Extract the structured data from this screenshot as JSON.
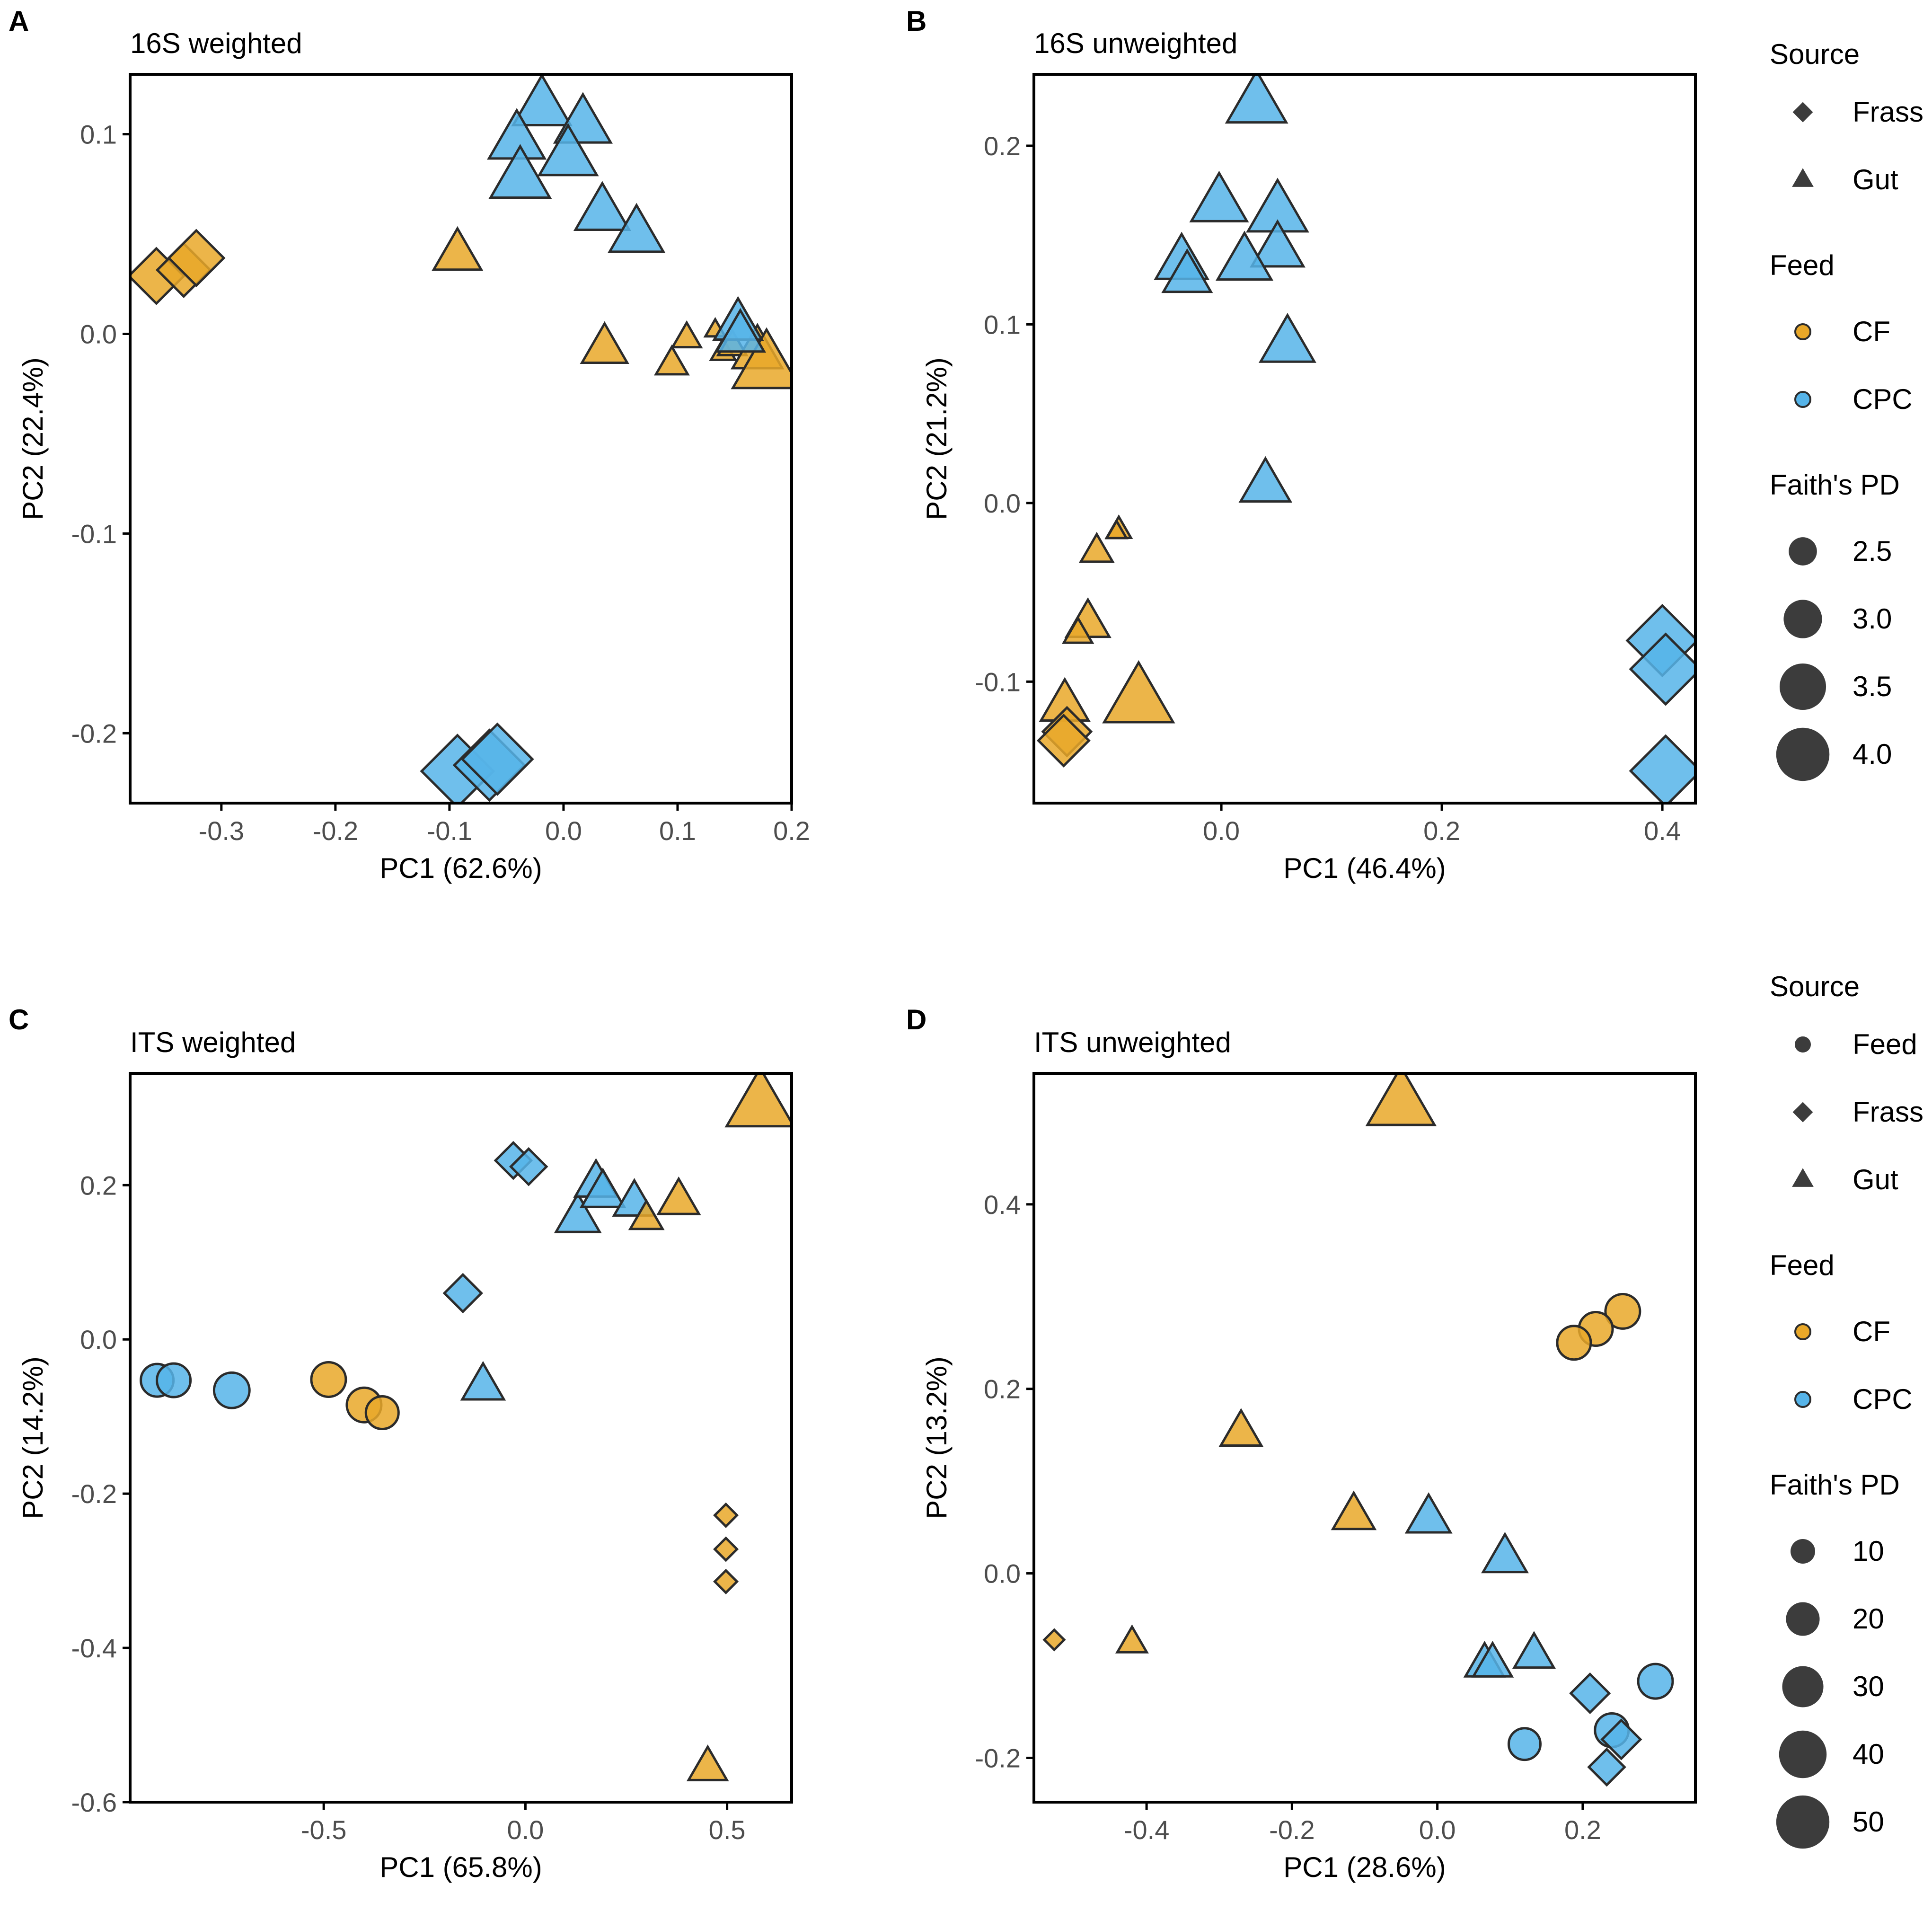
{
  "colors": {
    "CF": "#E9A829",
    "CPC": "#56B4E9",
    "point_stroke": "#2b2b2b",
    "legend_key": "#3c3c3c",
    "axis": "#000000",
    "tick_text": "#4d4d4d",
    "label_text": "#000000"
  },
  "chart_data": [
    {
      "type": "scatter",
      "panel_label": "A",
      "title": "16S weighted",
      "xlabel": "PC1 (62.6%)",
      "ylabel": "PC2 (22.4%)",
      "xlim": [
        -0.38,
        0.2
      ],
      "ylim": [
        -0.235,
        0.13
      ],
      "xticks": [
        -0.3,
        -0.2,
        -0.1,
        0.0,
        0.1,
        0.2
      ],
      "xtick_labels": [
        "-0.3",
        "-0.2",
        "-0.1",
        "0.0",
        "0.1",
        "0.2"
      ],
      "yticks": [
        -0.2,
        -0.1,
        0.0,
        0.1
      ],
      "ytick_labels": [
        "-0.2",
        "-0.1",
        "0.0",
        "0.1"
      ],
      "size_range": [
        2.0,
        4.2
      ],
      "points": [
        {
          "x": -0.357,
          "y": 0.029,
          "shape": "diamond",
          "feed": "CF",
          "size": 3.2
        },
        {
          "x": -0.333,
          "y": 0.032,
          "shape": "diamond",
          "feed": "CF",
          "size": 3.1
        },
        {
          "x": -0.322,
          "y": 0.038,
          "shape": "diamond",
          "feed": "CF",
          "size": 3.2
        },
        {
          "x": -0.093,
          "y": 0.04,
          "shape": "triangle",
          "feed": "CF",
          "size": 3.0
        },
        {
          "x": 0.036,
          "y": -0.007,
          "shape": "triangle",
          "feed": "CF",
          "size": 2.9
        },
        {
          "x": 0.095,
          "y": -0.015,
          "shape": "triangle",
          "feed": "CF",
          "size": 2.4
        },
        {
          "x": 0.108,
          "y": -0.002,
          "shape": "triangle",
          "feed": "CF",
          "size": 2.3
        },
        {
          "x": 0.133,
          "y": 0.002,
          "shape": "triangle",
          "feed": "CF",
          "size": 2.1
        },
        {
          "x": 0.14,
          "y": -0.009,
          "shape": "triangle",
          "feed": "CF",
          "size": 2.2
        },
        {
          "x": 0.148,
          "y": -0.006,
          "shape": "triangle",
          "feed": "CF",
          "size": 2.3
        },
        {
          "x": 0.17,
          "y": -0.009,
          "shape": "triangle",
          "feed": "CF",
          "size": 3.1
        },
        {
          "x": 0.178,
          "y": -0.016,
          "shape": "triangle",
          "feed": "CF",
          "size": 4.1
        },
        {
          "x": -0.019,
          "y": 0.114,
          "shape": "triangle",
          "feed": "CPC",
          "size": 3.5
        },
        {
          "x": 0.017,
          "y": 0.105,
          "shape": "triangle",
          "feed": "CPC",
          "size": 3.4
        },
        {
          "x": -0.041,
          "y": 0.097,
          "shape": "triangle",
          "feed": "CPC",
          "size": 3.4
        },
        {
          "x": 0.004,
          "y": 0.089,
          "shape": "triangle",
          "feed": "CPC",
          "size": 3.5
        },
        {
          "x": -0.038,
          "y": 0.078,
          "shape": "triangle",
          "feed": "CPC",
          "size": 3.6
        },
        {
          "x": 0.034,
          "y": 0.061,
          "shape": "triangle",
          "feed": "CPC",
          "size": 3.3
        },
        {
          "x": 0.064,
          "y": 0.05,
          "shape": "triangle",
          "feed": "CPC",
          "size": 3.3
        },
        {
          "x": 0.153,
          "y": 0.005,
          "shape": "triangle",
          "feed": "CPC",
          "size": 3.0
        },
        {
          "x": 0.155,
          "y": -0.001,
          "shape": "triangle",
          "feed": "CPC",
          "size": 3.0
        },
        {
          "x": -0.093,
          "y": -0.219,
          "shape": "diamond",
          "feed": "CPC",
          "size": 4.1
        },
        {
          "x": -0.065,
          "y": -0.216,
          "shape": "diamond",
          "feed": "CPC",
          "size": 4.0
        },
        {
          "x": -0.058,
          "y": -0.213,
          "shape": "diamond",
          "feed": "CPC",
          "size": 4.0
        }
      ]
    },
    {
      "type": "scatter",
      "panel_label": "B",
      "title": "16S unweighted",
      "xlabel": "PC1 (46.4%)",
      "ylabel": "PC2 (21.2%)",
      "xlim": [
        -0.17,
        0.43
      ],
      "ylim": [
        -0.168,
        0.24
      ],
      "xticks": [
        0.0,
        0.2,
        0.4
      ],
      "xtick_labels": [
        "0.0",
        "0.2",
        "0.4"
      ],
      "yticks": [
        -0.1,
        0.0,
        0.1,
        0.2
      ],
      "ytick_labels": [
        "-0.1",
        "0.0",
        "0.1",
        "0.2"
      ],
      "size_range": [
        2.0,
        4.2
      ],
      "points": [
        {
          "x": 0.032,
          "y": 0.224,
          "shape": "triangle",
          "feed": "CPC",
          "size": 3.6
        },
        {
          "x": -0.002,
          "y": 0.168,
          "shape": "triangle",
          "feed": "CPC",
          "size": 3.4
        },
        {
          "x": 0.051,
          "y": 0.163,
          "shape": "triangle",
          "feed": "CPC",
          "size": 3.6
        },
        {
          "x": 0.051,
          "y": 0.142,
          "shape": "triangle",
          "feed": "CPC",
          "size": 3.2
        },
        {
          "x": -0.036,
          "y": 0.135,
          "shape": "triangle",
          "feed": "CPC",
          "size": 3.2
        },
        {
          "x": 0.021,
          "y": 0.135,
          "shape": "triangle",
          "feed": "CPC",
          "size": 3.3
        },
        {
          "x": -0.031,
          "y": 0.127,
          "shape": "triangle",
          "feed": "CPC",
          "size": 3.0
        },
        {
          "x": 0.06,
          "y": 0.089,
          "shape": "triangle",
          "feed": "CPC",
          "size": 3.3
        },
        {
          "x": 0.04,
          "y": 0.01,
          "shape": "triangle",
          "feed": "CPC",
          "size": 3.1
        },
        {
          "x": 0.4,
          "y": -0.077,
          "shape": "diamond",
          "feed": "CPC",
          "size": 4.0
        },
        {
          "x": 0.403,
          "y": -0.093,
          "shape": "diamond",
          "feed": "CPC",
          "size": 4.0
        },
        {
          "x": 0.403,
          "y": -0.15,
          "shape": "diamond",
          "feed": "CPC",
          "size": 4.0
        },
        {
          "x": -0.093,
          "y": -0.015,
          "shape": "triangle",
          "feed": "CF",
          "size": 2.2
        },
        {
          "x": -0.095,
          "y": -0.016,
          "shape": "triangle",
          "feed": "CF",
          "size": 2.1
        },
        {
          "x": -0.113,
          "y": -0.027,
          "shape": "triangle",
          "feed": "CF",
          "size": 2.4
        },
        {
          "x": -0.121,
          "y": -0.067,
          "shape": "triangle",
          "feed": "CF",
          "size": 2.8
        },
        {
          "x": -0.13,
          "y": -0.073,
          "shape": "triangle",
          "feed": "CF",
          "size": 2.3
        },
        {
          "x": -0.075,
          "y": -0.11,
          "shape": "triangle",
          "feed": "CF",
          "size": 4.2
        },
        {
          "x": -0.142,
          "y": -0.113,
          "shape": "triangle",
          "feed": "CF",
          "size": 3.0
        },
        {
          "x": -0.14,
          "y": -0.128,
          "shape": "diamond",
          "feed": "CF",
          "size": 2.9
        },
        {
          "x": -0.143,
          "y": -0.133,
          "shape": "diamond",
          "feed": "CF",
          "size": 3.0
        }
      ]
    },
    {
      "type": "scatter",
      "panel_label": "C",
      "title": "ITS weighted",
      "xlabel": "PC1 (65.8%)",
      "ylabel": "PC2 (14.2%)",
      "xlim": [
        -0.98,
        0.66
      ],
      "ylim": [
        -0.6,
        0.345
      ],
      "xticks": [
        -0.5,
        0.0,
        0.5
      ],
      "xtick_labels": [
        "-0.5",
        "0.0",
        "0.5"
      ],
      "yticks": [
        -0.6,
        -0.4,
        -0.2,
        0.0,
        0.2
      ],
      "ytick_labels": [
        "-0.6",
        "-0.4",
        "-0.2",
        "0.0",
        "0.2"
      ],
      "size_range": [
        2,
        55
      ],
      "points": [
        {
          "x": -0.913,
          "y": -0.053,
          "shape": "circle",
          "feed": "CPC",
          "size": 17
        },
        {
          "x": -0.872,
          "y": -0.053,
          "shape": "circle",
          "feed": "CPC",
          "size": 18
        },
        {
          "x": -0.728,
          "y": -0.066,
          "shape": "circle",
          "feed": "CPC",
          "size": 20
        },
        {
          "x": -0.488,
          "y": -0.052,
          "shape": "circle",
          "feed": "CF",
          "size": 19
        },
        {
          "x": -0.4,
          "y": -0.085,
          "shape": "circle",
          "feed": "CF",
          "size": 19
        },
        {
          "x": -0.355,
          "y": -0.095,
          "shape": "circle",
          "feed": "CF",
          "size": 17
        },
        {
          "x": -0.03,
          "y": 0.232,
          "shape": "diamond",
          "feed": "CPC",
          "size": 13
        },
        {
          "x": 0.008,
          "y": 0.224,
          "shape": "diamond",
          "feed": "CPC",
          "size": 13
        },
        {
          "x": -0.155,
          "y": 0.06,
          "shape": "diamond",
          "feed": "CPC",
          "size": 14
        },
        {
          "x": -0.105,
          "y": -0.06,
          "shape": "triangle",
          "feed": "CPC",
          "size": 20
        },
        {
          "x": 0.13,
          "y": 0.158,
          "shape": "triangle",
          "feed": "CPC",
          "size": 22
        },
        {
          "x": 0.175,
          "y": 0.203,
          "shape": "triangle",
          "feed": "CPC",
          "size": 20
        },
        {
          "x": 0.192,
          "y": 0.19,
          "shape": "triangle",
          "feed": "CPC",
          "size": 21
        },
        {
          "x": 0.27,
          "y": 0.178,
          "shape": "triangle",
          "feed": "CPC",
          "size": 19
        },
        {
          "x": 0.3,
          "y": 0.157,
          "shape": "triangle",
          "feed": "CF",
          "size": 12
        },
        {
          "x": 0.38,
          "y": 0.18,
          "shape": "triangle",
          "feed": "CF",
          "size": 19
        },
        {
          "x": 0.582,
          "y": 0.305,
          "shape": "triangle",
          "feed": "CF",
          "size": 52
        },
        {
          "x": 0.497,
          "y": -0.228,
          "shape": "diamond",
          "feed": "CF",
          "size": 5
        },
        {
          "x": 0.497,
          "y": -0.272,
          "shape": "diamond",
          "feed": "CF",
          "size": 5
        },
        {
          "x": 0.497,
          "y": -0.314,
          "shape": "diamond",
          "feed": "CF",
          "size": 5
        },
        {
          "x": 0.452,
          "y": -0.555,
          "shape": "triangle",
          "feed": "CF",
          "size": 17
        }
      ]
    },
    {
      "type": "scatter",
      "panel_label": "D",
      "title": "ITS unweighted",
      "xlabel": "PC1 (28.6%)",
      "ylabel": "PC2 (13.2%)",
      "xlim": [
        -0.555,
        0.355
      ],
      "ylim": [
        -0.248,
        0.542
      ],
      "xticks": [
        -0.4,
        -0.2,
        0.0,
        0.2
      ],
      "xtick_labels": [
        "-0.4",
        "-0.2",
        "0.0",
        "0.2"
      ],
      "yticks": [
        -0.2,
        0.0,
        0.2,
        0.4
      ],
      "ytick_labels": [
        "-0.2",
        "0.0",
        "0.2",
        "0.4"
      ],
      "size_range": [
        2,
        55
      ],
      "points": [
        {
          "x": -0.05,
          "y": 0.51,
          "shape": "triangle",
          "feed": "CF",
          "size": 52
        },
        {
          "x": 0.255,
          "y": 0.284,
          "shape": "circle",
          "feed": "CF",
          "size": 19
        },
        {
          "x": 0.218,
          "y": 0.265,
          "shape": "circle",
          "feed": "CF",
          "size": 18
        },
        {
          "x": 0.188,
          "y": 0.25,
          "shape": "circle",
          "feed": "CF",
          "size": 18
        },
        {
          "x": -0.27,
          "y": 0.153,
          "shape": "triangle",
          "feed": "CF",
          "size": 19
        },
        {
          "x": -0.115,
          "y": 0.063,
          "shape": "triangle",
          "feed": "CF",
          "size": 20
        },
        {
          "x": -0.527,
          "y": -0.072,
          "shape": "diamond",
          "feed": "CF",
          "size": 4
        },
        {
          "x": -0.42,
          "y": -0.075,
          "shape": "triangle",
          "feed": "CF",
          "size": 10
        },
        {
          "x": -0.012,
          "y": 0.06,
          "shape": "triangle",
          "feed": "CPC",
          "size": 22
        },
        {
          "x": 0.093,
          "y": 0.017,
          "shape": "triangle",
          "feed": "CPC",
          "size": 22
        },
        {
          "x": 0.133,
          "y": -0.088,
          "shape": "triangle",
          "feed": "CPC",
          "size": 18
        },
        {
          "x": 0.065,
          "y": -0.098,
          "shape": "triangle",
          "feed": "CPC",
          "size": 17
        },
        {
          "x": 0.076,
          "y": -0.098,
          "shape": "triangle",
          "feed": "CPC",
          "size": 17
        },
        {
          "x": 0.3,
          "y": -0.117,
          "shape": "circle",
          "feed": "CPC",
          "size": 19
        },
        {
          "x": 0.21,
          "y": -0.13,
          "shape": "diamond",
          "feed": "CPC",
          "size": 15
        },
        {
          "x": 0.12,
          "y": -0.185,
          "shape": "circle",
          "feed": "CPC",
          "size": 16
        },
        {
          "x": 0.24,
          "y": -0.17,
          "shape": "circle",
          "feed": "CPC",
          "size": 18
        },
        {
          "x": 0.253,
          "y": -0.18,
          "shape": "diamond",
          "feed": "CPC",
          "size": 15
        },
        {
          "x": 0.233,
          "y": -0.21,
          "shape": "diamond",
          "feed": "CPC",
          "size": 13
        }
      ]
    }
  ],
  "legends": [
    {
      "source_title": "Source",
      "source_items": [
        {
          "label": "Frass",
          "shape": "diamond"
        },
        {
          "label": "Gut",
          "shape": "triangle"
        }
      ],
      "feed_title": "Feed",
      "feed_items": [
        {
          "label": "CF",
          "feed": "CF"
        },
        {
          "label": "CPC",
          "feed": "CPC"
        }
      ],
      "size_title": "Faith's PD",
      "size_items": [
        {
          "label": "2.5",
          "value": 2.5
        },
        {
          "label": "3.0",
          "value": 3.0
        },
        {
          "label": "3.5",
          "value": 3.5
        },
        {
          "label": "4.0",
          "value": 4.0
        }
      ],
      "size_range": [
        2.0,
        4.2
      ]
    },
    {
      "source_title": "Source",
      "source_items": [
        {
          "label": "Feed",
          "shape": "circle"
        },
        {
          "label": "Frass",
          "shape": "diamond"
        },
        {
          "label": "Gut",
          "shape": "triangle"
        }
      ],
      "feed_title": "Feed",
      "feed_items": [
        {
          "label": "CF",
          "feed": "CF"
        },
        {
          "label": "CPC",
          "feed": "CPC"
        }
      ],
      "size_title": "Faith's PD",
      "size_items": [
        {
          "label": "10",
          "value": 10
        },
        {
          "label": "20",
          "value": 20
        },
        {
          "label": "30",
          "value": 30
        },
        {
          "label": "40",
          "value": 40
        },
        {
          "label": "50",
          "value": 50
        }
      ],
      "size_range": [
        2,
        55
      ]
    }
  ]
}
